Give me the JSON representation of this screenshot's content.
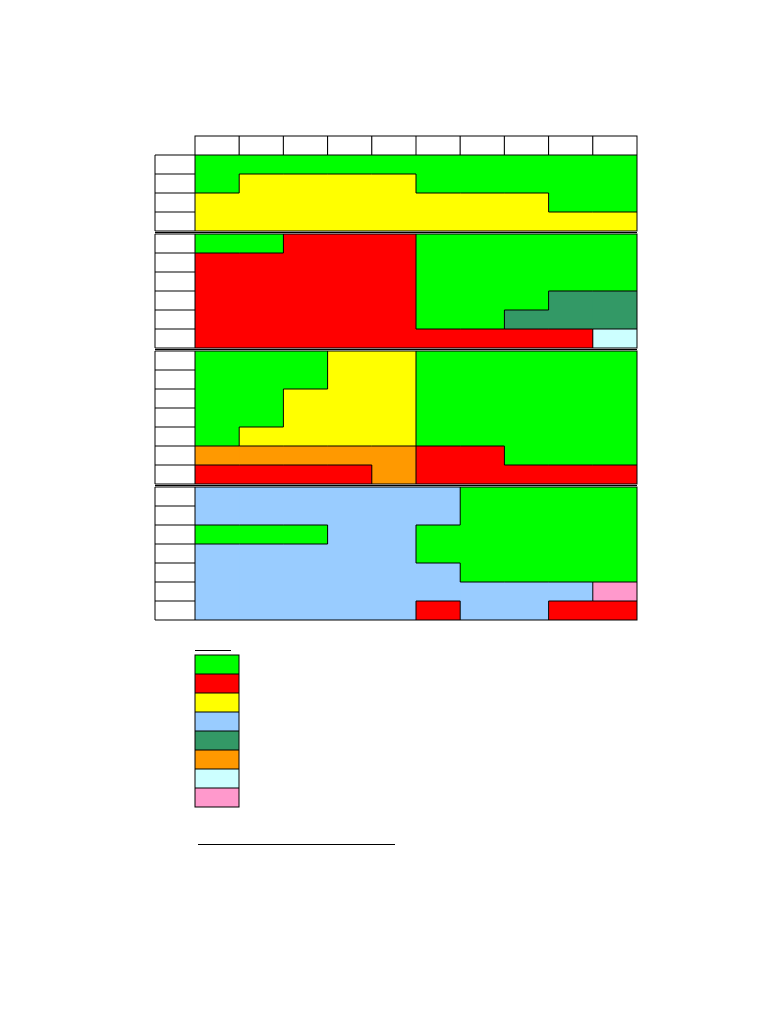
{
  "grid": {
    "sections": [
      [
        [
          "#00ff00",
          "#00ff00",
          "#00ff00",
          "#00ff00",
          "#00ff00",
          "#00ff00",
          "#00ff00",
          "#00ff00",
          "#00ff00",
          "#00ff00"
        ],
        [
          "#00ff00",
          "#ffff00",
          "#ffff00",
          "#ffff00",
          "#ffff00",
          "#00ff00",
          "#00ff00",
          "#00ff00",
          "#00ff00",
          "#00ff00"
        ],
        [
          "#ffff00",
          "#ffff00",
          "#ffff00",
          "#ffff00",
          "#ffff00",
          "#ffff00",
          "#ffff00",
          "#ffff00",
          "#00ff00",
          "#00ff00"
        ],
        [
          "#ffff00",
          "#ffff00",
          "#ffff00",
          "#ffff00",
          "#ffff00",
          "#ffff00",
          "#ffff00",
          "#ffff00",
          "#ffff00",
          "#ffff00"
        ]
      ],
      [
        [
          "#00ff00",
          "#00ff00",
          "#ff0000",
          "#ff0000",
          "#ff0000",
          "#00ff00",
          "#00ff00",
          "#00ff00",
          "#00ff00",
          "#00ff00"
        ],
        [
          "#ff0000",
          "#ff0000",
          "#ff0000",
          "#ff0000",
          "#ff0000",
          "#00ff00",
          "#00ff00",
          "#00ff00",
          "#00ff00",
          "#00ff00"
        ],
        [
          "#ff0000",
          "#ff0000",
          "#ff0000",
          "#ff0000",
          "#ff0000",
          "#00ff00",
          "#00ff00",
          "#00ff00",
          "#00ff00",
          "#00ff00"
        ],
        [
          "#ff0000",
          "#ff0000",
          "#ff0000",
          "#ff0000",
          "#ff0000",
          "#00ff00",
          "#00ff00",
          "#00ff00",
          "#339966",
          "#339966"
        ],
        [
          "#ff0000",
          "#ff0000",
          "#ff0000",
          "#ff0000",
          "#ff0000",
          "#00ff00",
          "#00ff00",
          "#339966",
          "#339966",
          "#339966"
        ],
        [
          "#ff0000",
          "#ff0000",
          "#ff0000",
          "#ff0000",
          "#ff0000",
          "#ff0000",
          "#ff0000",
          "#ff0000",
          "#ff0000",
          "#ccffff"
        ]
      ],
      [
        [
          "#00ff00",
          "#00ff00",
          "#00ff00",
          "#ffff00",
          "#ffff00",
          "#00ff00",
          "#00ff00",
          "#00ff00",
          "#00ff00",
          "#00ff00"
        ],
        [
          "#00ff00",
          "#00ff00",
          "#00ff00",
          "#ffff00",
          "#ffff00",
          "#00ff00",
          "#00ff00",
          "#00ff00",
          "#00ff00",
          "#00ff00"
        ],
        [
          "#00ff00",
          "#00ff00",
          "#ffff00",
          "#ffff00",
          "#ffff00",
          "#00ff00",
          "#00ff00",
          "#00ff00",
          "#00ff00",
          "#00ff00"
        ],
        [
          "#00ff00",
          "#00ff00",
          "#ffff00",
          "#ffff00",
          "#ffff00",
          "#00ff00",
          "#00ff00",
          "#00ff00",
          "#00ff00",
          "#00ff00"
        ],
        [
          "#00ff00",
          "#ffff00",
          "#ffff00",
          "#ffff00",
          "#ffff00",
          "#00ff00",
          "#00ff00",
          "#00ff00",
          "#00ff00",
          "#00ff00"
        ],
        [
          "#ff9900",
          "#ff9900",
          "#ff9900",
          "#ff9900",
          "#ff9900",
          "#ff0000",
          "#ff0000",
          "#00ff00",
          "#00ff00",
          "#00ff00"
        ],
        [
          "#ff0000",
          "#ff0000",
          "#ff0000",
          "#ff0000",
          "#ff9900",
          "#ff0000",
          "#ff0000",
          "#ff0000",
          "#ff0000",
          "#ff0000"
        ]
      ],
      [
        [
          "#99ccff",
          "#99ccff",
          "#99ccff",
          "#99ccff",
          "#99ccff",
          "#99ccff",
          "#00ff00",
          "#00ff00",
          "#00ff00",
          "#00ff00"
        ],
        [
          "#99ccff",
          "#99ccff",
          "#99ccff",
          "#99ccff",
          "#99ccff",
          "#99ccff",
          "#00ff00",
          "#00ff00",
          "#00ff00",
          "#00ff00"
        ],
        [
          "#00ff00",
          "#00ff00",
          "#00ff00",
          "#99ccff",
          "#99ccff",
          "#00ff00",
          "#00ff00",
          "#00ff00",
          "#00ff00",
          "#00ff00"
        ],
        [
          "#99ccff",
          "#99ccff",
          "#99ccff",
          "#99ccff",
          "#99ccff",
          "#00ff00",
          "#00ff00",
          "#00ff00",
          "#00ff00",
          "#00ff00"
        ],
        [
          "#99ccff",
          "#99ccff",
          "#99ccff",
          "#99ccff",
          "#99ccff",
          "#99ccff",
          "#00ff00",
          "#00ff00",
          "#00ff00",
          "#00ff00"
        ],
        [
          "#99ccff",
          "#99ccff",
          "#99ccff",
          "#99ccff",
          "#99ccff",
          "#99ccff",
          "#99ccff",
          "#99ccff",
          "#99ccff",
          "#ff99cc"
        ],
        [
          "#99ccff",
          "#99ccff",
          "#99ccff",
          "#99ccff",
          "#99ccff",
          "#ff0000",
          "#99ccff",
          "#99ccff",
          "#ff0000",
          "#ff0000"
        ]
      ]
    ],
    "legend": [
      "#00ff00",
      "#ff0000",
      "#ffff00",
      "#99ccff",
      "#339966",
      "#ff9900",
      "#ccffff",
      "#ff99cc"
    ]
  }
}
